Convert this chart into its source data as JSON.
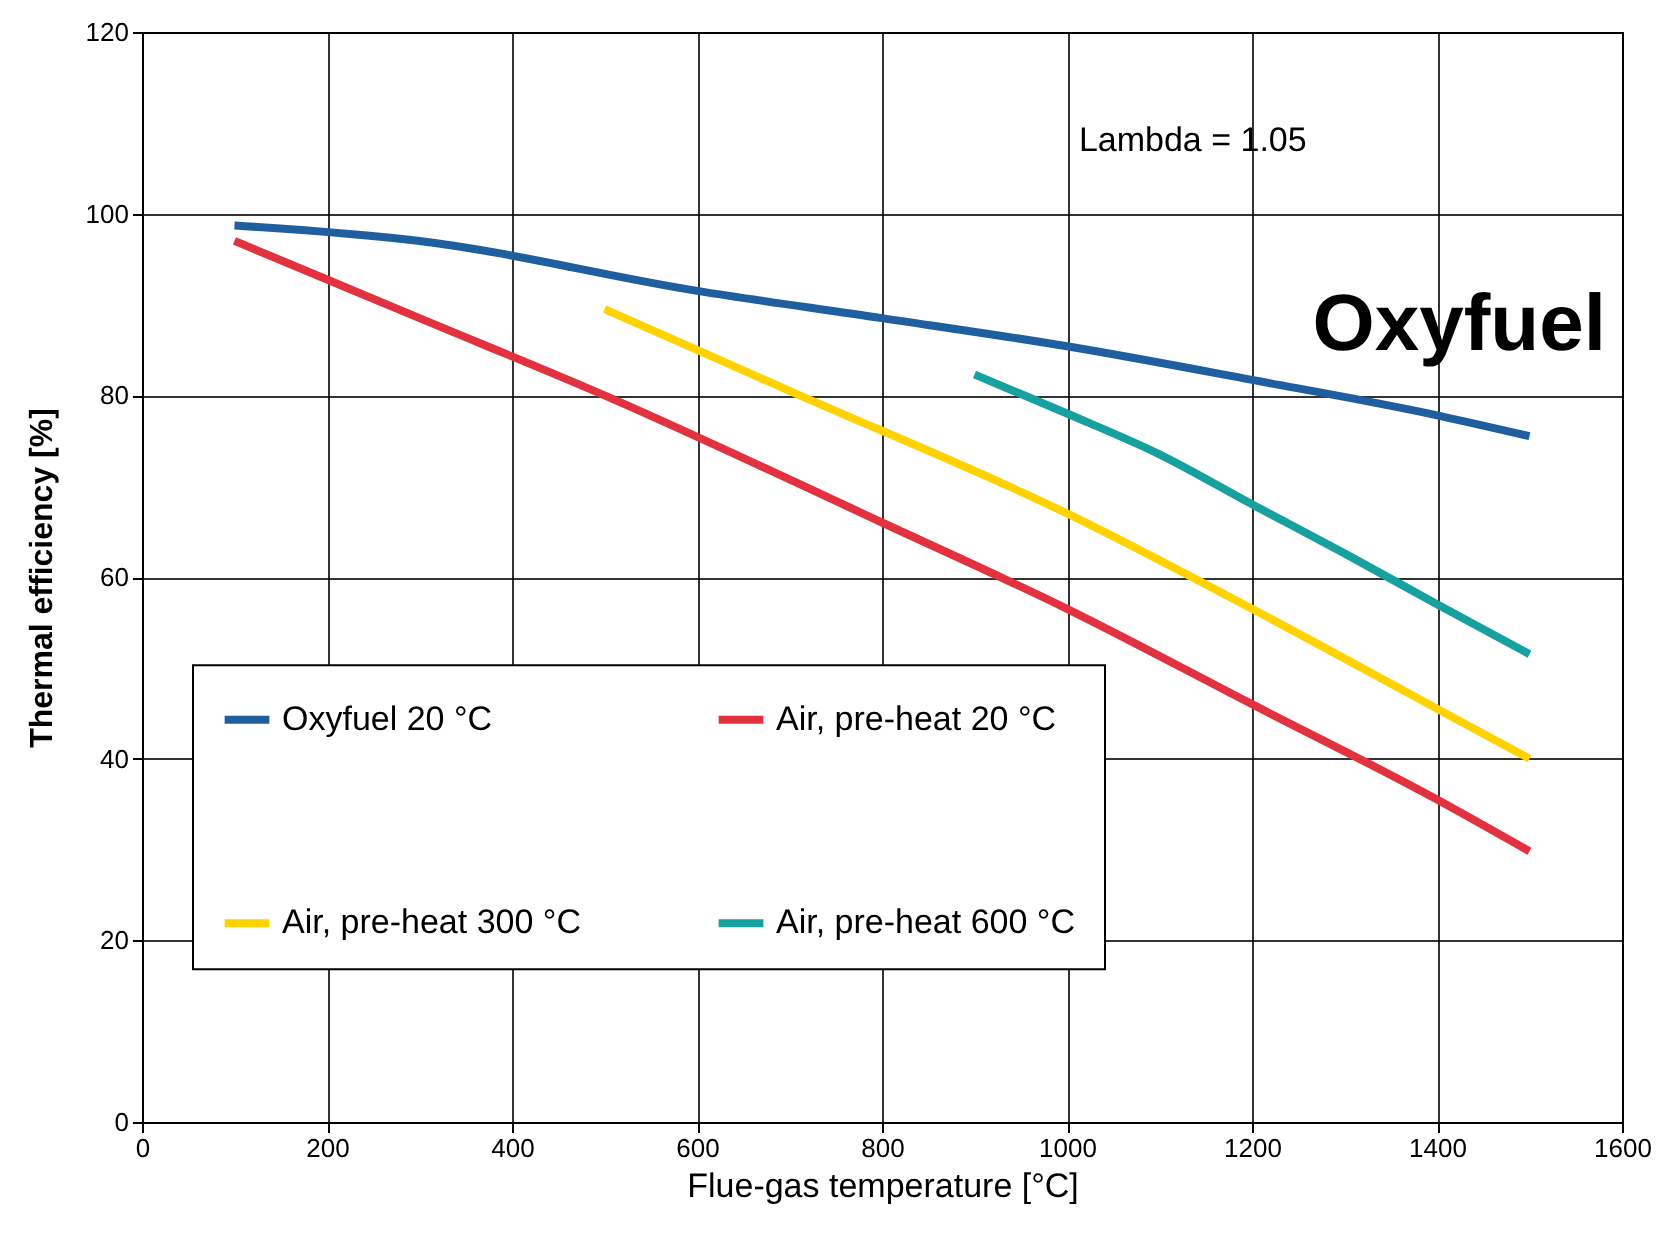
{
  "chart_data": {
    "type": "line",
    "xlabel": "Flue-gas temperature [°C]",
    "ylabel": "Thermal efficiency [%]",
    "xlim": [
      0,
      1600
    ],
    "xticks": [
      0,
      200,
      400,
      600,
      800,
      1000,
      1200,
      1400,
      1600
    ],
    "ylim": [
      0,
      120
    ],
    "yticks": [
      0,
      20,
      40,
      60,
      80,
      100,
      120
    ],
    "grid": true,
    "legend": "bottom left",
    "line_style": "solid",
    "annotations": [
      "Lambda = 1.05",
      "Oxyfuel"
    ],
    "series": [
      {
        "name": "Oxyfuel 20 °C",
        "color": "#1f5fa0",
        "x": [
          100,
          300,
          600,
          800,
          1000,
          1200,
          1400,
          1500
        ],
        "values": [
          98.7,
          97,
          91.5,
          88.5,
          85.4,
          81.7,
          77.8,
          75.5
        ]
      },
      {
        "name": "Air, pre-heat 20 °C",
        "color": "#e2323f",
        "x": [
          100,
          300,
          500,
          800,
          1000,
          1200,
          1400,
          1500
        ],
        "values": [
          97,
          88.5,
          80,
          66,
          56.5,
          46,
          35.5,
          29.8
        ]
      },
      {
        "name": "Air, pre-heat 300 °C",
        "color": "#ffd200",
        "x": [
          500,
          700,
          1000,
          1200,
          1400,
          1500
        ],
        "values": [
          89.5,
          80.5,
          67,
          56.5,
          45.5,
          40
        ]
      },
      {
        "name": "Air, pre-heat 600 °C",
        "color": "#16a0a0",
        "x": [
          900,
          1000,
          1100,
          1200,
          1300,
          1400,
          1500
        ],
        "values": [
          82.3,
          78,
          73.5,
          68,
          62.6,
          57,
          51.5
        ]
      }
    ]
  }
}
